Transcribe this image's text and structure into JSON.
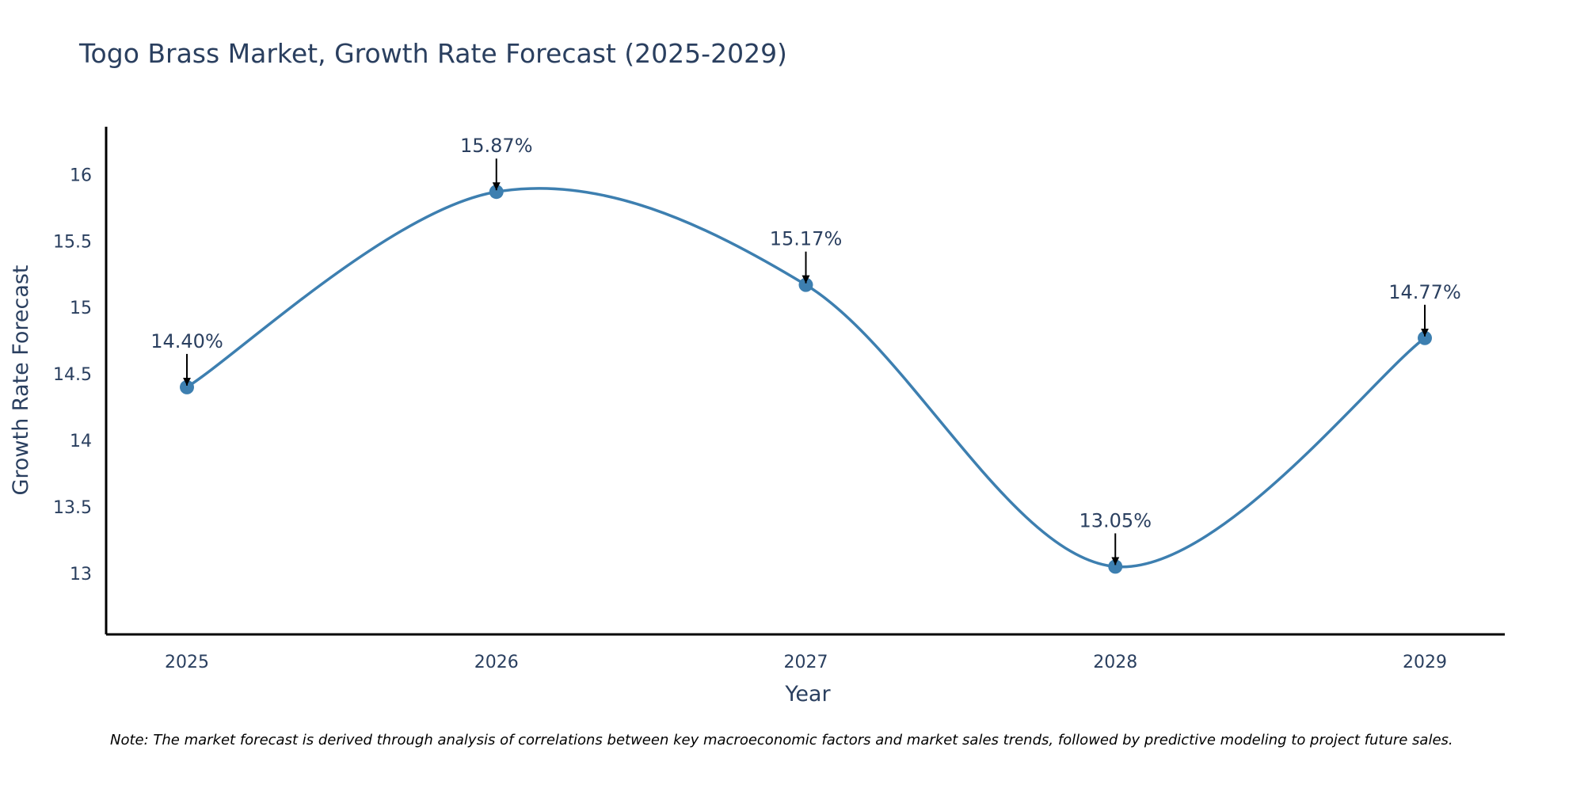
{
  "chart_data": {
    "type": "line",
    "title": "Togo Brass Market, Growth Rate Forecast (2025-2029)",
    "xlabel": "Year",
    "ylabel": "Growth Rate Forecast",
    "categories": [
      "2025",
      "2026",
      "2027",
      "2028",
      "2029"
    ],
    "series": [
      {
        "name": "Growth Rate Forecast",
        "values": [
          14.4,
          15.87,
          15.17,
          13.05,
          14.77
        ],
        "labels": [
          "14.40%",
          "15.87%",
          "15.17%",
          "13.05%",
          "14.77%"
        ]
      }
    ],
    "ylim": [
      12.54,
      16.36
    ],
    "yticks": [
      13,
      13.5,
      14,
      14.5,
      15,
      15.5,
      16
    ],
    "ytick_labels": [
      "13",
      "13.5",
      "14",
      "14.5",
      "15",
      "15.5",
      "16"
    ],
    "grid": false,
    "line_shape": "spline",
    "line_color": "#3d7fb0",
    "marker_color": "#3d7fb0",
    "annotation_arrow_color": "#000000",
    "note": "Note: The market forecast is derived through analysis of correlations between key macroeconomic factors and market sales trends, followed by predictive modeling to project future sales."
  }
}
